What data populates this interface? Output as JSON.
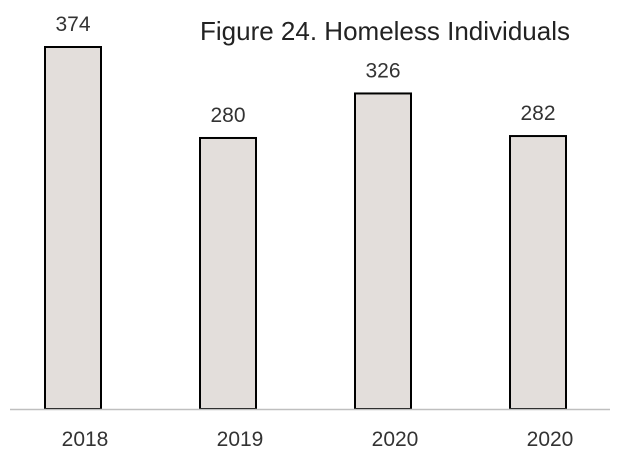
{
  "chart_data": {
    "type": "bar",
    "title": "Figure 24. Homeless Individuals",
    "categories": [
      "2018",
      "2019",
      "2020",
      "2020"
    ],
    "values": [
      374,
      280,
      326,
      282
    ],
    "data_labels": [
      "374",
      "280",
      "326",
      "282"
    ],
    "xlabel": "",
    "ylabel": "",
    "ylim": [
      0,
      374
    ],
    "grid": false,
    "legend": "none",
    "colors": {
      "bar_fill": "#e3dedb",
      "bar_stroke": "#000000",
      "axis": "#bfbfbf"
    }
  }
}
